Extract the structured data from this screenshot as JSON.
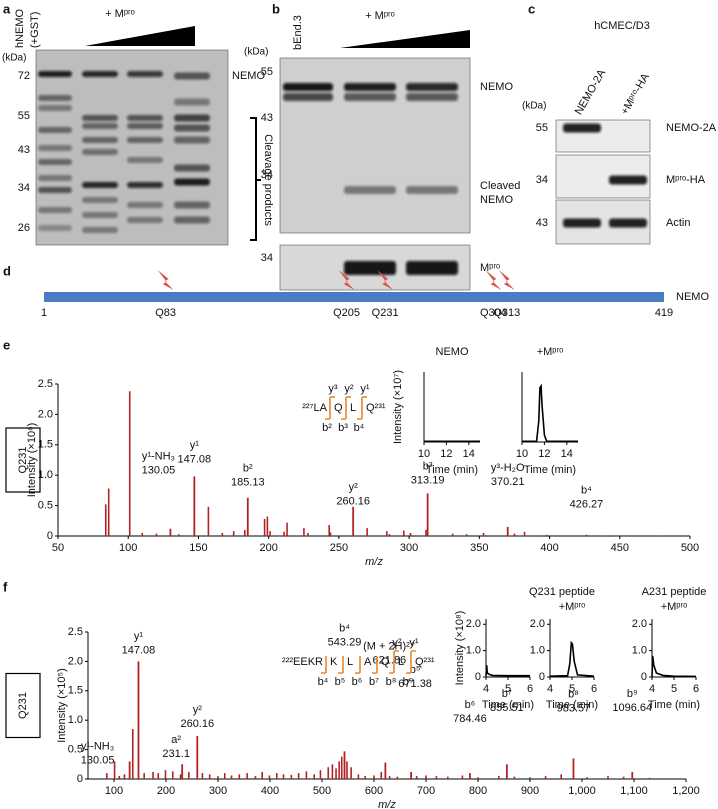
{
  "panels": {
    "a": {
      "letter": "a",
      "lanes": [
        "hNEMO",
        "(+GST)"
      ],
      "treatment": "+ Mᵖʳᵒ",
      "kda_unit": "(kDa)",
      "markers": [
        72,
        55,
        43,
        34,
        26
      ],
      "labels": [
        "NEMO",
        "Cleavage products"
      ]
    },
    "b": {
      "letter": "b",
      "lane": "bEnd.3",
      "treatment": "+ Mᵖʳᵒ",
      "kda_unit": "(kDa)",
      "markers": [
        55,
        43,
        34
      ],
      "labels": [
        "NEMO",
        "Cleaved",
        "NEMO"
      ],
      "lower_marker": 34,
      "lower_label": "Mᵖʳᵒ"
    },
    "c": {
      "letter": "c",
      "cell_line": "hCMEC/D3",
      "lanes": [
        "NEMO-2A",
        "+Mᵖʳᵒ-HA"
      ],
      "kda_unit": "(kDa)",
      "rows": [
        {
          "marker": 55,
          "label": "NEMO-2A"
        },
        {
          "marker": 34,
          "label": "Mᵖʳᵒ-HA"
        },
        {
          "marker": 43,
          "label": "Actin"
        }
      ]
    },
    "d": {
      "letter": "d",
      "name": "NEMO",
      "start": 1,
      "end": 419,
      "color": "#4a7cc4",
      "site_color": "#d9534f",
      "sites": [
        {
          "position": 83,
          "label": "Q83"
        },
        {
          "position": 205,
          "label": "Q205"
        },
        {
          "position": 231,
          "label": "Q231"
        },
        {
          "position": 304,
          "label": "Q304"
        },
        {
          "position": 313,
          "label": "Q313"
        }
      ]
    },
    "e": {
      "letter": "e"
    },
    "f": {
      "letter": "f"
    }
  },
  "chart_data": [
    {
      "type": "spectrum",
      "label": "Q231",
      "xlabel": "m/z",
      "ylabel": "Intensity (×10⁶)",
      "color": "#b22222",
      "xlim": [
        50,
        500
      ],
      "ylim": [
        0,
        2.5
      ],
      "xticks": [
        50,
        100,
        150,
        200,
        250,
        300,
        350,
        400,
        450,
        500
      ],
      "yticks": [
        0,
        0.5,
        {
          "value": 1,
          "label": "1.0"
        },
        1.5,
        {
          "value": 2,
          "label": "2.0"
        },
        2.5
      ],
      "x": [
        84.0,
        86.1,
        101.07,
        110,
        120.08,
        136,
        157.1,
        167,
        175.1,
        183,
        197.1,
        199.1,
        201,
        211,
        213.1,
        225.1,
        228,
        243.1,
        244,
        270.1,
        284.1,
        286,
        296.2,
        301,
        312,
        331,
        341,
        353,
        375,
        382.2,
        398,
        440,
        480
      ],
      "values": [
        0.52,
        0.78,
        2.38,
        0.05,
        0.04,
        0.03,
        0.48,
        0.05,
        0.08,
        0.1,
        0.28,
        0.32,
        0.08,
        0.07,
        0.22,
        0.13,
        0.05,
        0.18,
        0.06,
        0.13,
        0.08,
        0.03,
        0.09,
        0.05,
        0.1,
        0.04,
        0.03,
        0.05,
        0.04,
        0.07,
        0.02,
        0.01,
        0.01
      ],
      "peak_labels": [
        {
          "ion": "y¹-NH₃",
          "mz": 130.05,
          "intensity": 0.12
        },
        {
          "ion": "y¹",
          "mz": 147.08,
          "intensity": 0.98
        },
        {
          "ion": "b²",
          "mz": 185.13,
          "intensity": 0.63
        },
        {
          "ion": "y²",
          "mz": 260.16,
          "intensity": 0.48
        },
        {
          "ion": "b³",
          "mz": 313.19,
          "intensity": 0.7
        },
        {
          "ion": "y³-H₂O",
          "mz": 370.21,
          "intensity": 0.15
        },
        {
          "ion": "b⁴",
          "mz": 426.27,
          "intensity": 0.02
        }
      ],
      "peptide": {
        "prefix": "²²⁷LA",
        "residues": [
          "Q",
          "L",
          "Q²³¹"
        ],
        "y_ions": [
          "y³",
          "y²",
          "y¹"
        ],
        "b_ions": [
          "b²",
          "b³",
          "b⁴"
        ],
        "color": "#2a5ca8",
        "ion_color": "#e8892b"
      }
    },
    {
      "type": "line",
      "title": "NEMO",
      "title_color": "#2a5ca8",
      "ylabel": "Intensity (×10⁷)",
      "xlabel": "Time (min)",
      "color": "#000000",
      "xlim": [
        10,
        15
      ],
      "ylim": [
        0,
        2
      ],
      "xticks": [
        10,
        12,
        14
      ],
      "x": [
        10,
        15
      ],
      "values": [
        0.02,
        0.02
      ]
    },
    {
      "type": "line",
      "title": "+Mᵖʳᵒ",
      "title_color": "#d0312d",
      "xlabel": "Time (min)",
      "color": "#000000",
      "xlim": [
        10,
        15
      ],
      "ylim": [
        0,
        2
      ],
      "xticks": [
        10,
        12,
        14
      ],
      "x": [
        10,
        11.3,
        11.5,
        11.6,
        11.7,
        11.8,
        12.0,
        12.2,
        15
      ],
      "values": [
        0.02,
        0.02,
        0.6,
        1.55,
        1.6,
        1.0,
        0.2,
        0.02,
        0.02
      ]
    },
    {
      "type": "spectrum",
      "label": "Q231",
      "xlabel": "m/z",
      "ylabel": "Intensity (×10⁵)",
      "color": "#b22222",
      "xlim": [
        50,
        1200
      ],
      "ylim": [
        0,
        2.5
      ],
      "xticks": [
        100,
        200,
        300,
        400,
        500,
        600,
        700,
        800,
        900,
        {
          "value": 1000,
          "label": "1,000"
        },
        {
          "value": 1100,
          "label": "1,100"
        },
        {
          "value": 1200,
          "label": "1,200"
        }
      ],
      "yticks": [
        0,
        0.5,
        {
          "value": 1,
          "label": "1.0"
        },
        1.5,
        {
          "value": 2,
          "label": "2.0"
        },
        2.5
      ],
      "x": [
        86.1,
        101.07,
        110.1,
        120,
        136.08,
        158,
        175.1,
        185.1,
        199,
        213,
        228,
        244,
        270,
        284,
        300,
        313,
        326,
        341,
        356,
        372,
        385,
        399,
        413,
        426,
        441,
        455,
        470,
        485,
        497,
        512,
        520,
        527,
        533,
        538,
        548,
        556,
        570,
        583,
        600,
        614,
        630,
        645,
        682,
        700,
        720,
        742,
        770,
        800,
        840,
        870,
        900,
        930,
        960,
        1010,
        1050,
        1080,
        1130
      ],
      "values": [
        0.1,
        0.3,
        0.05,
        0.08,
        0.85,
        0.1,
        0.12,
        0.1,
        0.15,
        0.13,
        0.08,
        0.12,
        0.1,
        0.08,
        0.05,
        0.1,
        0.06,
        0.08,
        0.1,
        0.05,
        0.12,
        0.06,
        0.1,
        0.08,
        0.07,
        0.1,
        0.13,
        0.08,
        0.15,
        0.2,
        0.25,
        0.18,
        0.3,
        0.38,
        0.3,
        0.2,
        0.08,
        0.05,
        0.06,
        0.12,
        0.05,
        0.04,
        0.05,
        0.06,
        0.05,
        0.04,
        0.06,
        0.03,
        0.05,
        0.04,
        0.03,
        0.05,
        0.08,
        0.03,
        0.05,
        0.04,
        0.02
      ],
      "peak_labels": [
        {
          "ion": "y¹-NH₃",
          "mz": 130.05,
          "intensity": 0.3
        },
        {
          "ion": "y¹",
          "mz": 147.08,
          "intensity": 2.0
        },
        {
          "ion": "a²",
          "mz": 231.1,
          "intensity": 0.25
        },
        {
          "ion": "y²",
          "mz": 260.16,
          "intensity": 0.73
        },
        {
          "ion": "b⁴",
          "mz": 543.29,
          "intensity": 0.47
        },
        {
          "ion": "(M + 2H)²⁺",
          "mz": 621.86,
          "intensity": 0.28
        },
        {
          "ion": "b⁵",
          "mz": 671.38,
          "intensity": 0.12
        },
        {
          "ion": "b⁶",
          "mz": 784.46,
          "intensity": 0.1
        },
        {
          "ion": "b⁷",
          "mz": 855.51,
          "intensity": 0.25
        },
        {
          "ion": "b⁸",
          "mz": 983.57,
          "intensity": 0.35
        },
        {
          "ion": "b⁹",
          "mz": 1096.64,
          "intensity": 0.12
        }
      ],
      "peptide": {
        "prefix": "²²²EEKR",
        "residues": [
          "K",
          "L",
          "A",
          "Q",
          "L",
          "Q²³¹"
        ],
        "y_ions": [
          null,
          null,
          null,
          null,
          "y²",
          "y¹"
        ],
        "b_ions": [
          "b⁴",
          "b⁵",
          "b⁶",
          "b⁷",
          "b⁸",
          "b⁹"
        ],
        "color": "#2a5ca8",
        "ion_color": "#e8892b"
      }
    },
    {
      "type": "line",
      "title": "Q231 peptide",
      "title_color": "#2a5ca8",
      "ylabel": "Intensity (×10⁸)",
      "xlabel": "Time (min)",
      "color": "#000000",
      "xlim": [
        4,
        6
      ],
      "ylim": [
        0,
        2.2
      ],
      "xticks": [
        4,
        5,
        6
      ],
      "yticks": [
        0,
        {
          "value": 1,
          "label": "1.0"
        },
        {
          "value": 2,
          "label": "2.0"
        }
      ],
      "x": [
        4,
        4.03,
        4.06,
        4.15,
        4.3,
        5,
        6
      ],
      "values": [
        0.05,
        0.45,
        0.15,
        0.1,
        0.06,
        0.05,
        0.05
      ]
    },
    {
      "type": "line",
      "subtitle": "+Mᵖʳᵒ",
      "subtitle_color": "#d0312d",
      "xlabel": "Time (min)",
      "color": "#000000",
      "xlim": [
        4,
        6
      ],
      "ylim": [
        0,
        2.2
      ],
      "xticks": [
        4,
        5,
        6
      ],
      "yticks": [
        0,
        {
          "value": 1,
          "label": "1.0"
        },
        {
          "value": 2,
          "label": "2.0"
        }
      ],
      "x": [
        4,
        4.8,
        4.9,
        4.97,
        5.02,
        5.1,
        5.25,
        6
      ],
      "values": [
        0.03,
        0.05,
        0.5,
        1.3,
        1.25,
        0.6,
        0.08,
        0.03
      ]
    },
    {
      "type": "line",
      "title": "A231 peptide",
      "title_color": "#2a5ca8",
      "subtitle": "+Mᵖʳᵒ",
      "subtitle_color": "#d0312d",
      "xlabel": "Time (min)",
      "color": "#000000",
      "xlim": [
        4,
        6
      ],
      "ylim": [
        0,
        2.2
      ],
      "xticks": [
        4,
        5,
        6
      ],
      "yticks": [
        0,
        {
          "value": 1,
          "label": "1.0"
        },
        {
          "value": 2,
          "label": "2.0"
        }
      ],
      "x": [
        4,
        4.03,
        4.08,
        4.2,
        4.5,
        5,
        6
      ],
      "values": [
        0.02,
        0.8,
        0.45,
        0.15,
        0.06,
        0.03,
        0.02
      ]
    }
  ]
}
